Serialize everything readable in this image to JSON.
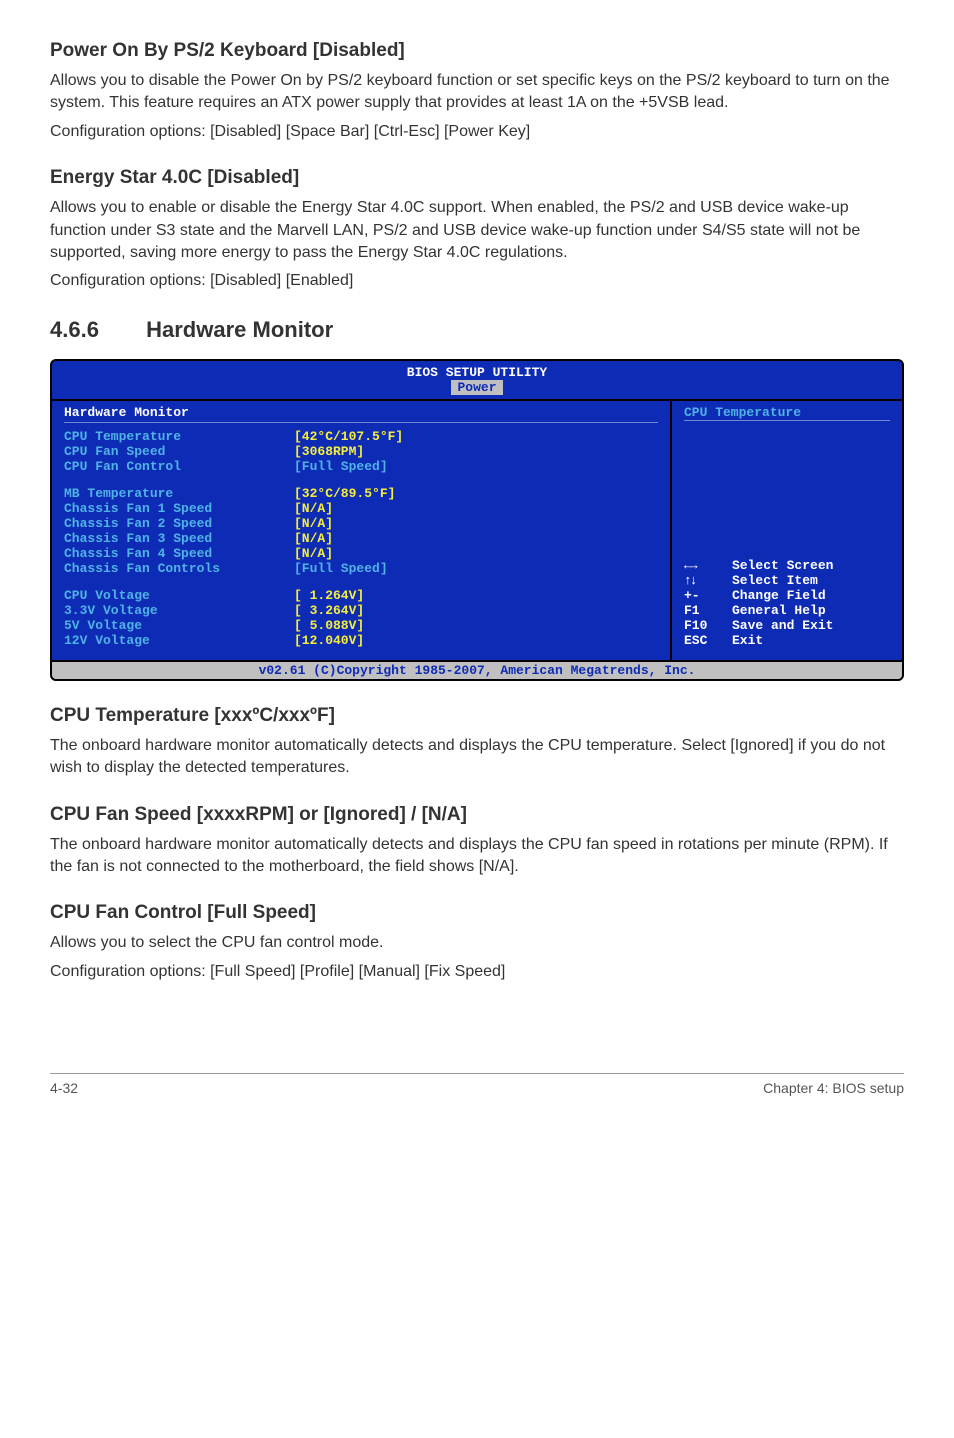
{
  "sections": {
    "power_on_ps2": {
      "heading": "Power On By PS/2 Keyboard [Disabled]",
      "p1": "Allows you to disable the Power On by PS/2 keyboard function or set specific keys on the PS/2 keyboard to turn on the system. This feature requires an ATX power supply that provides at least 1A on the +5VSB lead.",
      "p2": "Configuration options: [Disabled] [Space Bar] [Ctrl-Esc] [Power Key]"
    },
    "energy_star": {
      "heading": "Energy Star 4.0C [Disabled]",
      "p1": "Allows you to enable or disable the Energy Star 4.0C support. When enabled, the PS/2 and USB device wake-up function under S3 state and the Marvell LAN, PS/2 and USB device wake-up function under S4/S5 state will not be supported, saving more energy to pass the Energy Star 4.0C regulations.",
      "p2": "Configuration options: [Disabled] [Enabled]"
    },
    "hw_monitor": {
      "num": "4.6.6",
      "title": "Hardware Monitor"
    },
    "cpu_temp": {
      "heading": "CPU Temperature [xxxºC/xxxºF]",
      "p1": "The onboard hardware monitor automatically detects and displays the CPU temperature. Select [Ignored] if you do not wish to display the detected temperatures."
    },
    "cpu_fan_speed": {
      "heading": "CPU Fan Speed [xxxxRPM] or [Ignored] / [N/A]",
      "p1": "The onboard hardware monitor automatically detects and displays the CPU fan speed in rotations per minute (RPM). If the fan is not connected to the motherboard, the field shows [N/A]."
    },
    "cpu_fan_control": {
      "heading": "CPU Fan Control [Full Speed]",
      "p1": "Allows you to select the CPU fan control mode.",
      "p2": "Configuration options: [Full Speed] [Profile] [Manual] [Fix Speed]"
    }
  },
  "bios": {
    "header": "BIOS SETUP UTILITY",
    "tab": "Power",
    "left_title": "Hardware Monitor",
    "rows_group1": [
      {
        "label": "CPU Temperature",
        "value": "[42°C/107.5°F]",
        "color": "yellow"
      },
      {
        "label": "CPU Fan Speed",
        "value": "[3068RPM]",
        "color": "yellow"
      },
      {
        "label": "CPU Fan Control",
        "value": "[Full Speed]",
        "color": "cyan"
      }
    ],
    "rows_group2": [
      {
        "label": "MB Temperature",
        "value": "[32°C/89.5°F]",
        "color": "yellow"
      },
      {
        "label": "Chassis Fan 1 Speed",
        "value": "[N/A]",
        "color": "yellow"
      },
      {
        "label": "Chassis Fan 2 Speed",
        "value": "[N/A]",
        "color": "yellow"
      },
      {
        "label": "Chassis Fan 3 Speed",
        "value": "[N/A]",
        "color": "yellow"
      },
      {
        "label": "Chassis Fan 4 Speed",
        "value": "[N/A]",
        "color": "yellow"
      },
      {
        "label": "Chassis Fan Controls",
        "value": "[Full Speed]",
        "color": "cyan"
      }
    ],
    "rows_group3": [
      {
        "label": "CPU Voltage",
        "value": "[ 1.264V]",
        "color": "yellow"
      },
      {
        "label": "3.3V  Voltage",
        "value": "[ 3.264V]",
        "color": "yellow"
      },
      {
        "label": "5V    Voltage",
        "value": "[ 5.088V]",
        "color": "yellow"
      },
      {
        "label": "12V   Voltage",
        "value": "[12.040V]",
        "color": "yellow"
      }
    ],
    "help_title": "CPU Temperature",
    "nav": [
      {
        "key": "←→",
        "label": "Select Screen"
      },
      {
        "key": "↑↓",
        "label": "Select Item"
      },
      {
        "key": "+-",
        "label": " Change Field"
      },
      {
        "key": "F1",
        "label": "General Help"
      },
      {
        "key": "F10",
        "label": "Save and Exit"
      },
      {
        "key": "ESC",
        "label": "Exit"
      }
    ],
    "footer": "v02.61 (C)Copyright 1985-2007, American Megatrends, Inc."
  },
  "page_footer": {
    "left": "4-32",
    "right": "Chapter 4: BIOS setup"
  }
}
